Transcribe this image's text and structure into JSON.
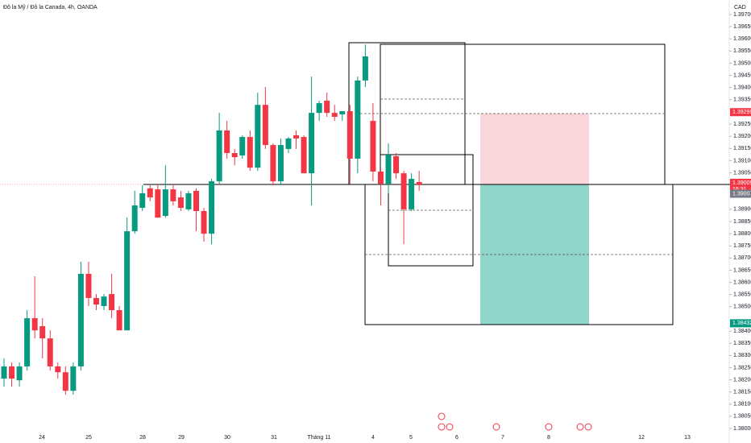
{
  "chart_data": {
    "type": "candlestick",
    "title": "Đô la Mỹ / Đô la Canada, 4h, OANDA",
    "currency": "CAD",
    "up_color": "#089981",
    "down_color": "#f23645",
    "ylim": [
      1.38,
      1.397
    ],
    "yticks": [
      {
        "value": 1.397,
        "label": "1.39700"
      },
      {
        "value": 1.3965,
        "label": "1.39650"
      },
      {
        "value": 1.396,
        "label": "1.39600"
      },
      {
        "value": 1.3955,
        "label": "1.39550"
      },
      {
        "value": 1.395,
        "label": "1.39500"
      },
      {
        "value": 1.3945,
        "label": "1.39450"
      },
      {
        "value": 1.394,
        "label": "1.39400"
      },
      {
        "value": 1.3935,
        "label": "1.39350"
      },
      {
        "value": 1.3925,
        "label": "1.39250"
      },
      {
        "value": 1.392,
        "label": "1.39200"
      },
      {
        "value": 1.3915,
        "label": "1.39150"
      },
      {
        "value": 1.391,
        "label": "1.39100"
      },
      {
        "value": 1.3905,
        "label": "1.39050"
      },
      {
        "value": 1.389,
        "label": "1.38900"
      },
      {
        "value": 1.3885,
        "label": "1.38850"
      },
      {
        "value": 1.388,
        "label": "1.38800"
      },
      {
        "value": 1.3875,
        "label": "1.38750"
      },
      {
        "value": 1.387,
        "label": "1.38700"
      },
      {
        "value": 1.3865,
        "label": "1.38650"
      },
      {
        "value": 1.386,
        "label": "1.38600"
      },
      {
        "value": 1.3855,
        "label": "1.38550"
      },
      {
        "value": 1.385,
        "label": "1.38500"
      },
      {
        "value": 1.384,
        "label": "1.38400"
      },
      {
        "value": 1.3835,
        "label": "1.38350"
      },
      {
        "value": 1.383,
        "label": "1.38300"
      },
      {
        "value": 1.3825,
        "label": "1.38250"
      },
      {
        "value": 1.382,
        "label": "1.38200"
      },
      {
        "value": 1.3815,
        "label": "1.38150"
      },
      {
        "value": 1.381,
        "label": "1.38100"
      },
      {
        "value": 1.3805,
        "label": "1.38050"
      },
      {
        "value": 1.38,
        "label": "1.38000"
      }
    ],
    "x_labels": [
      "24",
      "25",
      "28",
      "29",
      "30",
      "31",
      "Tháng 11",
      "4",
      "5",
      "6",
      "7",
      "8",
      "12",
      "13"
    ],
    "price_markers": [
      {
        "value": 1.39299,
        "label": "1.39299",
        "color": "#f23645"
      },
      {
        "value": 1.39009,
        "label": "1.39009",
        "sub": "16:31",
        "color": "#f23645"
      },
      {
        "value": 1.39007,
        "label": "1.39007",
        "color": "#787b86"
      },
      {
        "value": 1.38432,
        "label": "1.38432",
        "color": "#089981"
      }
    ],
    "candles": [
      {
        "open": 1.38205,
        "high": 1.38288,
        "low": 1.38172,
        "close": 1.38255
      },
      {
        "open": 1.38255,
        "high": 1.38271,
        "low": 1.38172,
        "close": 1.38205
      },
      {
        "open": 1.38198,
        "high": 1.38271,
        "low": 1.38172,
        "close": 1.38255
      },
      {
        "open": 1.38255,
        "high": 1.38486,
        "low": 1.38238,
        "close": 1.38453
      },
      {
        "open": 1.38453,
        "high": 1.38625,
        "low": 1.3837,
        "close": 1.38403
      },
      {
        "open": 1.3842,
        "high": 1.38453,
        "low": 1.38288,
        "close": 1.3837
      },
      {
        "open": 1.3837,
        "high": 1.38403,
        "low": 1.38238,
        "close": 1.38255
      },
      {
        "open": 1.38255,
        "high": 1.38271,
        "low": 1.38205,
        "close": 1.38231
      },
      {
        "open": 1.38231,
        "high": 1.38255,
        "low": 1.38139,
        "close": 1.38155
      },
      {
        "open": 1.38155,
        "high": 1.38271,
        "low": 1.38139,
        "close": 1.38255
      },
      {
        "open": 1.38255,
        "high": 1.38685,
        "low": 1.38238,
        "close": 1.38635
      },
      {
        "open": 1.38635,
        "high": 1.38685,
        "low": 1.38503,
        "close": 1.38536
      },
      {
        "open": 1.38536,
        "high": 1.38552,
        "low": 1.38486,
        "close": 1.38509
      },
      {
        "open": 1.38503,
        "high": 1.38552,
        "low": 1.38486,
        "close": 1.38542
      },
      {
        "open": 1.38552,
        "high": 1.38635,
        "low": 1.38453,
        "close": 1.38486
      },
      {
        "open": 1.38486,
        "high": 1.38503,
        "low": 1.38403,
        "close": 1.38403
      },
      {
        "open": 1.38403,
        "high": 1.38866,
        "low": 1.38403,
        "close": 1.3881
      },
      {
        "open": 1.3881,
        "high": 1.38976,
        "low": 1.388,
        "close": 1.38916
      },
      {
        "open": 1.38906,
        "high": 1.38999,
        "low": 1.38893,
        "close": 1.38966
      },
      {
        "open": 1.38986,
        "high": 1.38999,
        "low": 1.38933,
        "close": 1.38949
      },
      {
        "open": 1.38982,
        "high": 1.38999,
        "low": 1.38866,
        "close": 1.38866
      },
      {
        "open": 1.38873,
        "high": 1.39081,
        "low": 1.38866,
        "close": 1.38982
      },
      {
        "open": 1.38982,
        "high": 1.38999,
        "low": 1.38916,
        "close": 1.38933
      },
      {
        "open": 1.38949,
        "high": 1.38976,
        "low": 1.38893,
        "close": 1.38906
      },
      {
        "open": 1.389,
        "high": 1.38976,
        "low": 1.38893,
        "close": 1.38966
      },
      {
        "open": 1.38976,
        "high": 1.38986,
        "low": 1.3881,
        "close": 1.38893
      },
      {
        "open": 1.38893,
        "high": 1.38906,
        "low": 1.38767,
        "close": 1.388
      },
      {
        "open": 1.388,
        "high": 1.39025,
        "low": 1.38757,
        "close": 1.39015
      },
      {
        "open": 1.39015,
        "high": 1.39296,
        "low": 1.39002,
        "close": 1.39224
      },
      {
        "open": 1.39224,
        "high": 1.39263,
        "low": 1.39108,
        "close": 1.39131
      },
      {
        "open": 1.39131,
        "high": 1.39148,
        "low": 1.39081,
        "close": 1.39114
      },
      {
        "open": 1.39121,
        "high": 1.39204,
        "low": 1.39108,
        "close": 1.39197
      },
      {
        "open": 1.39197,
        "high": 1.39224,
        "low": 1.39058,
        "close": 1.39071
      },
      {
        "open": 1.39071,
        "high": 1.39379,
        "low": 1.39058,
        "close": 1.39329
      },
      {
        "open": 1.39329,
        "high": 1.39402,
        "low": 1.39148,
        "close": 1.39164
      },
      {
        "open": 1.39164,
        "high": 1.39171,
        "low": 1.38999,
        "close": 1.39015
      },
      {
        "open": 1.39015,
        "high": 1.39191,
        "low": 1.38999,
        "close": 1.39164
      },
      {
        "open": 1.39148,
        "high": 1.39197,
        "low": 1.39131,
        "close": 1.39191
      },
      {
        "open": 1.39204,
        "high": 1.39224,
        "low": 1.39148,
        "close": 1.39191
      },
      {
        "open": 1.39197,
        "high": 1.39204,
        "low": 1.39048,
        "close": 1.39048
      },
      {
        "open": 1.39048,
        "high": 1.39445,
        "low": 1.38916,
        "close": 1.39296
      },
      {
        "open": 1.39296,
        "high": 1.39346,
        "low": 1.39263,
        "close": 1.39336
      },
      {
        "open": 1.39346,
        "high": 1.39379,
        "low": 1.3928,
        "close": 1.39296
      },
      {
        "open": 1.39296,
        "high": 1.39329,
        "low": 1.39263,
        "close": 1.3928
      },
      {
        "open": 1.3929,
        "high": 1.39303,
        "low": 1.39263,
        "close": 1.39303
      },
      {
        "open": 1.39303,
        "high": 1.39329,
        "low": 1.39005,
        "close": 1.39108
      },
      {
        "open": 1.39108,
        "high": 1.39445,
        "low": 1.39048,
        "close": 1.39429
      },
      {
        "open": 1.39429,
        "high": 1.39577,
        "low": 1.39402,
        "close": 1.39528
      },
      {
        "open": 1.39263,
        "high": 1.39336,
        "low": 1.39015,
        "close": 1.39055
      },
      {
        "open": 1.39055,
        "high": 1.39071,
        "low": 1.38916,
        "close": 1.39005
      },
      {
        "open": 1.39005,
        "high": 1.39171,
        "low": 1.38966,
        "close": 1.39124
      },
      {
        "open": 1.39118,
        "high": 1.39131,
        "low": 1.39025,
        "close": 1.39048
      },
      {
        "open": 1.39048,
        "high": 1.39058,
        "low": 1.38757,
        "close": 1.389
      },
      {
        "open": 1.389,
        "high": 1.39048,
        "low": 1.38893,
        "close": 1.39025
      },
      {
        "open": 1.39012,
        "high": 1.39058,
        "low": 1.38976,
        "close": 1.39002
      }
    ]
  }
}
